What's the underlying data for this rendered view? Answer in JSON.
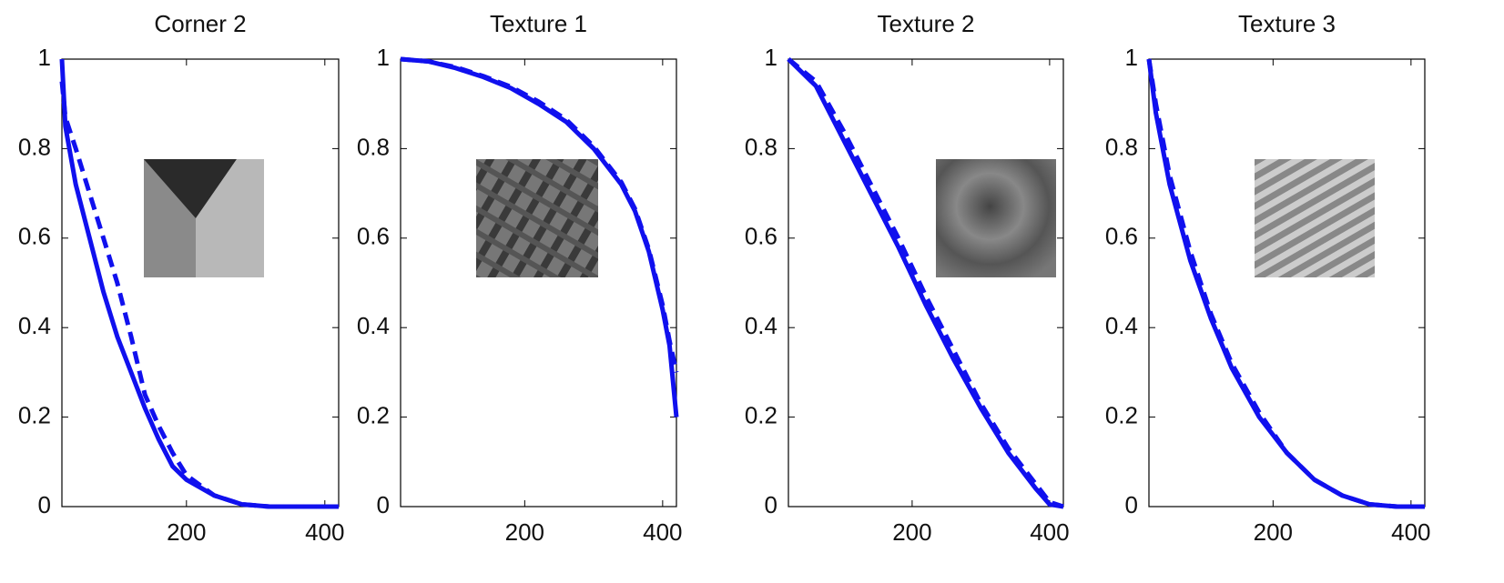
{
  "chart_data": [
    {
      "type": "line",
      "title": "Corner 2",
      "xlim": [
        20,
        420
      ],
      "ylim": [
        0,
        1
      ],
      "xticks": [
        200,
        400
      ],
      "yticks": [
        0,
        0.2,
        0.4,
        0.6,
        0.8,
        1
      ],
      "x": [
        20,
        25,
        40,
        60,
        80,
        100,
        120,
        140,
        160,
        180,
        200,
        240,
        280,
        320,
        420
      ],
      "series": [
        {
          "color": "#1010ee",
          "dash": false,
          "values": [
            1.0,
            0.85,
            0.72,
            0.6,
            0.48,
            0.38,
            0.3,
            0.22,
            0.15,
            0.09,
            0.06,
            0.025,
            0.005,
            0,
            0
          ]
        },
        {
          "color": "#1010ee",
          "dash": true,
          "values": [
            0.95,
            0.87,
            0.8,
            0.7,
            0.6,
            0.5,
            0.38,
            0.25,
            0.18,
            0.12,
            0.07,
            0.025,
            0.005,
            0,
            0
          ]
        }
      ]
    },
    {
      "type": "line",
      "title": "Texture 1",
      "xlim": [
        20,
        420
      ],
      "ylim": [
        0,
        1
      ],
      "xticks": [
        200,
        400
      ],
      "yticks": [
        0,
        0.2,
        0.4,
        0.6,
        0.8,
        1
      ],
      "x": [
        20,
        60,
        100,
        140,
        180,
        220,
        260,
        300,
        340,
        360,
        380,
        400,
        410,
        420
      ],
      "series": [
        {
          "color": "#1010ee",
          "dash": false,
          "values": [
            1.0,
            0.995,
            0.98,
            0.96,
            0.935,
            0.9,
            0.86,
            0.8,
            0.72,
            0.66,
            0.57,
            0.44,
            0.36,
            0.2
          ]
        },
        {
          "color": "#1010ee",
          "dash": true,
          "values": [
            1.0,
            0.995,
            0.982,
            0.962,
            0.938,
            0.905,
            0.865,
            0.805,
            0.725,
            0.665,
            0.575,
            0.45,
            0.37,
            0.3
          ]
        }
      ]
    },
    {
      "type": "line",
      "title": "Texture 2",
      "xlim": [
        20,
        420
      ],
      "ylim": [
        0,
        1
      ],
      "xticks": [
        200,
        400
      ],
      "yticks": [
        0,
        0.2,
        0.4,
        0.6,
        0.8,
        1
      ],
      "x": [
        20,
        60,
        100,
        140,
        180,
        220,
        260,
        300,
        340,
        380,
        400,
        420
      ],
      "series": [
        {
          "color": "#1010ee",
          "dash": false,
          "values": [
            1.0,
            0.94,
            0.82,
            0.7,
            0.58,
            0.45,
            0.33,
            0.22,
            0.12,
            0.04,
            0.005,
            0
          ]
        },
        {
          "color": "#1010ee",
          "dash": true,
          "values": [
            1.0,
            0.95,
            0.84,
            0.72,
            0.6,
            0.47,
            0.35,
            0.23,
            0.13,
            0.05,
            0.01,
            0
          ]
        }
      ]
    },
    {
      "type": "line",
      "title": "Texture 3",
      "xlim": [
        20,
        420
      ],
      "ylim": [
        0,
        1
      ],
      "xticks": [
        200,
        400
      ],
      "yticks": [
        0,
        0.2,
        0.4,
        0.6,
        0.8,
        1
      ],
      "x": [
        20,
        30,
        50,
        80,
        110,
        140,
        180,
        220,
        260,
        300,
        340,
        380,
        420
      ],
      "series": [
        {
          "color": "#1010ee",
          "dash": false,
          "values": [
            1.0,
            0.88,
            0.72,
            0.55,
            0.42,
            0.31,
            0.2,
            0.12,
            0.06,
            0.025,
            0.005,
            0,
            0
          ]
        },
        {
          "color": "#1010ee",
          "dash": true,
          "values": [
            1.0,
            0.9,
            0.74,
            0.57,
            0.43,
            0.32,
            0.21,
            0.12,
            0.06,
            0.025,
            0.005,
            0,
            0
          ]
        }
      ]
    }
  ]
}
